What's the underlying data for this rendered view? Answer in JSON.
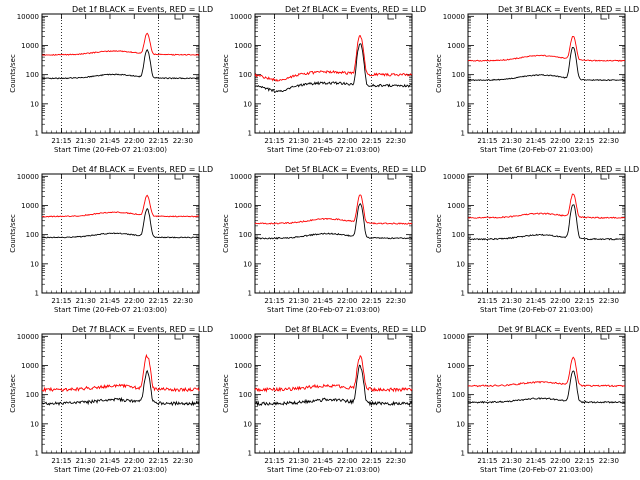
{
  "figure": {
    "common": {
      "type": "line",
      "xlabel": "Start Time (20-Feb-07 21:03:00)",
      "ylabel": "Counts/sec",
      "x_tick_labels": [
        "21:15",
        "21:30",
        "21:45",
        "22:00",
        "22:15",
        "22:30"
      ],
      "x_ticks_min": [
        12,
        27,
        42,
        57,
        72,
        87
      ],
      "xlim_min": [
        0,
        97
      ],
      "y_tick_labels": [
        "1",
        "10",
        "100",
        "1000",
        "10000"
      ],
      "y_tick_values": [
        1,
        10,
        100,
        1000,
        10000
      ],
      "ylim": [
        1,
        12000
      ],
      "yscale": "log",
      "series_colors": {
        "events": "#000000",
        "lld": "#ff0000"
      },
      "flare_peak_min": 65,
      "flare_width_min": 1.8,
      "marker_lines_min": [
        12,
        72
      ]
    },
    "panels": [
      {
        "title": "Det 1f BLACK = Events, RED = LLD",
        "chart_data": {
          "events_base": 75,
          "events_peak": 650,
          "lld_base": 480,
          "lld_peak": 2400,
          "bump": 1.35,
          "noise": 0.04
        }
      },
      {
        "title": "Det 2f BLACK = Events, RED = LLD",
        "chart_data": {
          "events_base": 42,
          "events_peak": 1100,
          "lld_base": 100,
          "lld_peak": 2100,
          "bump": 1.25,
          "noise": 0.1
        }
      },
      {
        "title": "Det 3f BLACK = Events, RED = LLD",
        "chart_data": {
          "events_base": 65,
          "events_peak": 800,
          "lld_base": 300,
          "lld_peak": 1900,
          "bump": 1.5,
          "noise": 0.04
        }
      },
      {
        "title": "Det 4f BLACK = Events, RED = LLD",
        "chart_data": {
          "events_base": 80,
          "events_peak": 700,
          "lld_base": 420,
          "lld_peak": 2000,
          "bump": 1.4,
          "noise": 0.04
        }
      },
      {
        "title": "Det 5f BLACK = Events, RED = LLD",
        "chart_data": {
          "events_base": 75,
          "events_peak": 1050,
          "lld_base": 240,
          "lld_peak": 2100,
          "bump": 1.45,
          "noise": 0.05
        }
      },
      {
        "title": "Det 6f BLACK = Events, RED = LLD",
        "chart_data": {
          "events_base": 70,
          "events_peak": 1000,
          "lld_base": 380,
          "lld_peak": 2300,
          "bump": 1.4,
          "noise": 0.05
        }
      },
      {
        "title": "Det 7f BLACK = Events, RED = LLD",
        "chart_data": {
          "events_base": 50,
          "events_peak": 550,
          "lld_base": 150,
          "lld_peak": 2000,
          "bump": 1.35,
          "noise": 0.13
        }
      },
      {
        "title": "Det 8f BLACK = Events, RED = LLD",
        "chart_data": {
          "events_base": 50,
          "events_peak": 900,
          "lld_base": 150,
          "lld_peak": 1900,
          "bump": 1.35,
          "noise": 0.13
        }
      },
      {
        "title": "Det 9f BLACK = Events, RED = LLD",
        "chart_data": {
          "events_base": 55,
          "events_peak": 620,
          "lld_base": 200,
          "lld_peak": 1800,
          "bump": 1.35,
          "noise": 0.06
        }
      }
    ]
  }
}
